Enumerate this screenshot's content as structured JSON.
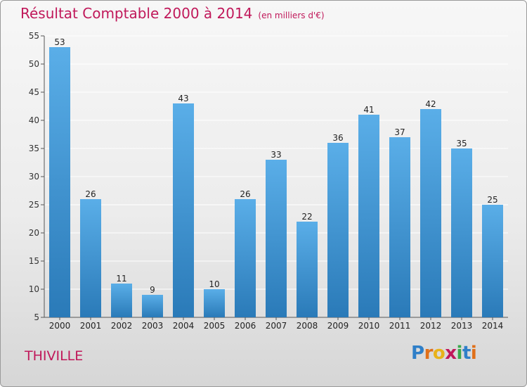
{
  "chart_data": {
    "type": "bar",
    "title": "Résultat Comptable 2000 à 2014",
    "subtitle": "(en milliers d'€)",
    "categories": [
      "2000",
      "2001",
      "2002",
      "2003",
      "2004",
      "2005",
      "2006",
      "2007",
      "2008",
      "2009",
      "2010",
      "2011",
      "2012",
      "2013",
      "2014"
    ],
    "values": [
      53,
      26,
      11,
      9,
      43,
      10,
      26,
      33,
      22,
      36,
      41,
      37,
      42,
      35,
      25
    ],
    "ylim": [
      5,
      55
    ],
    "yticks": [
      5,
      10,
      15,
      20,
      25,
      30,
      35,
      40,
      45,
      50,
      55
    ],
    "xlabel": "",
    "ylabel": "",
    "grid": true,
    "colors": {
      "bar_top": "#5aaee8",
      "bar_bottom": "#2a7ab8",
      "grid": "#ffffff",
      "title": "#c0185a"
    }
  },
  "place_name": "THIVILLE",
  "brand": {
    "letters": [
      "P",
      "r",
      "o",
      "x",
      "i",
      "t",
      "i"
    ],
    "colors": [
      "#2f7fc8",
      "#e0701a",
      "#e8b21a",
      "#c0185a",
      "#3aa84a",
      "#2f7fc8",
      "#e0701a"
    ]
  }
}
